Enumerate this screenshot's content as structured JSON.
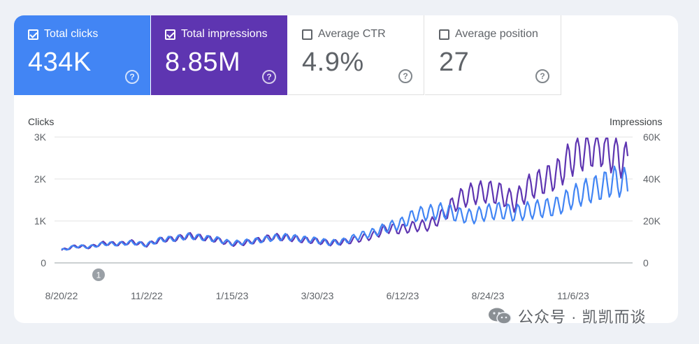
{
  "metrics": [
    {
      "label": "Total clicks",
      "value": "434K",
      "checked": true
    },
    {
      "label": "Total impressions",
      "value": "8.85M",
      "checked": true
    },
    {
      "label": "Average CTR",
      "value": "4.9%",
      "checked": false
    },
    {
      "label": "Average position",
      "value": "27",
      "checked": false
    }
  ],
  "help_glyph": "?",
  "watermark": "公众号 · 凯凯而谈",
  "chart_data": {
    "type": "line",
    "left_axis_title": "Clicks",
    "right_axis_title": "Impressions",
    "left_ticks": [
      "3K",
      "2K",
      "1K",
      "0"
    ],
    "right_ticks": [
      "60K",
      "40K",
      "20K",
      "0"
    ],
    "ylim_left": [
      0,
      3000
    ],
    "ylim_right": [
      0,
      60000
    ],
    "x_labels": [
      "8/20/22",
      "11/2/22",
      "1/15/23",
      "3/30/23",
      "6/12/23",
      "8/24/23",
      "11/6/23"
    ],
    "annotation": "1",
    "series": [
      {
        "name": "Total impressions",
        "axis": "right",
        "color": "#5e35b1",
        "values": [
          6000,
          8000,
          7500,
          9500,
          9000,
          10000,
          8500,
          11000,
          11500,
          13000,
          12000,
          11000,
          9000,
          9500,
          11000,
          12500,
          12000,
          11000,
          10500,
          9500,
          10000,
          11500,
          13000,
          16500,
          16000,
          17500,
          18000,
          23000,
          30000,
          33000,
          34000,
          33000,
          29000,
          36000,
          39000,
          42000,
          50000,
          54000,
          56000,
          52000,
          48000
        ]
      },
      {
        "name": "Total clicks",
        "axis": "left",
        "color": "#4285f4",
        "values": [
          300,
          400,
          380,
          460,
          450,
          490,
          430,
          560,
          580,
          640,
          600,
          560,
          470,
          500,
          540,
          600,
          620,
          570,
          540,
          480,
          520,
          640,
          720,
          850,
          940,
          1150,
          1200,
          1250,
          1150,
          1100,
          1200,
          1250,
          1180,
          1250,
          1300,
          1350,
          1550,
          1700,
          1800,
          1950,
          1900
        ]
      }
    ]
  }
}
